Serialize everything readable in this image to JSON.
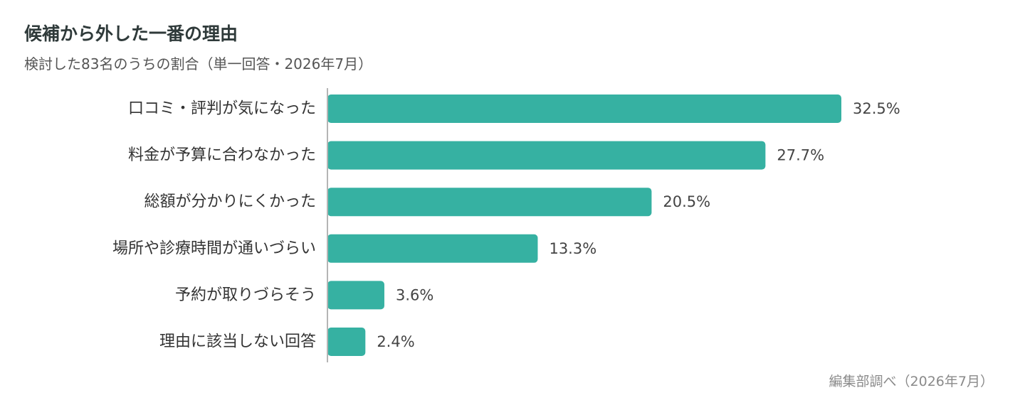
{
  "header": {
    "title": "候補から外した一番の理由",
    "subtitle": "検討した83名のうちの割合（単一回答・2026年7月）"
  },
  "footer": {
    "source": "編集部調べ（2026年7月）"
  },
  "colors": {
    "bar": "#36b1a2",
    "axis": "#b5b5b5",
    "label": "#333333",
    "value": "#444444"
  },
  "chart_data": {
    "type": "bar",
    "orientation": "horizontal",
    "categories": [
      "口コミ・評判が気になった",
      "料金が予算に合わなかった",
      "総額が分かりにくかった",
      "場所や診療時間が通いづらい",
      "予約が取りづらそう",
      "理由に該当しない回答"
    ],
    "values": [
      32.5,
      27.7,
      20.5,
      13.3,
      3.6,
      2.4
    ],
    "value_labels": [
      "32.5%",
      "27.7%",
      "20.5%",
      "13.3%",
      "3.6%",
      "2.4%"
    ],
    "unit": "%",
    "xlim": [
      0,
      32.5
    ],
    "grid": false,
    "legend": "none"
  }
}
